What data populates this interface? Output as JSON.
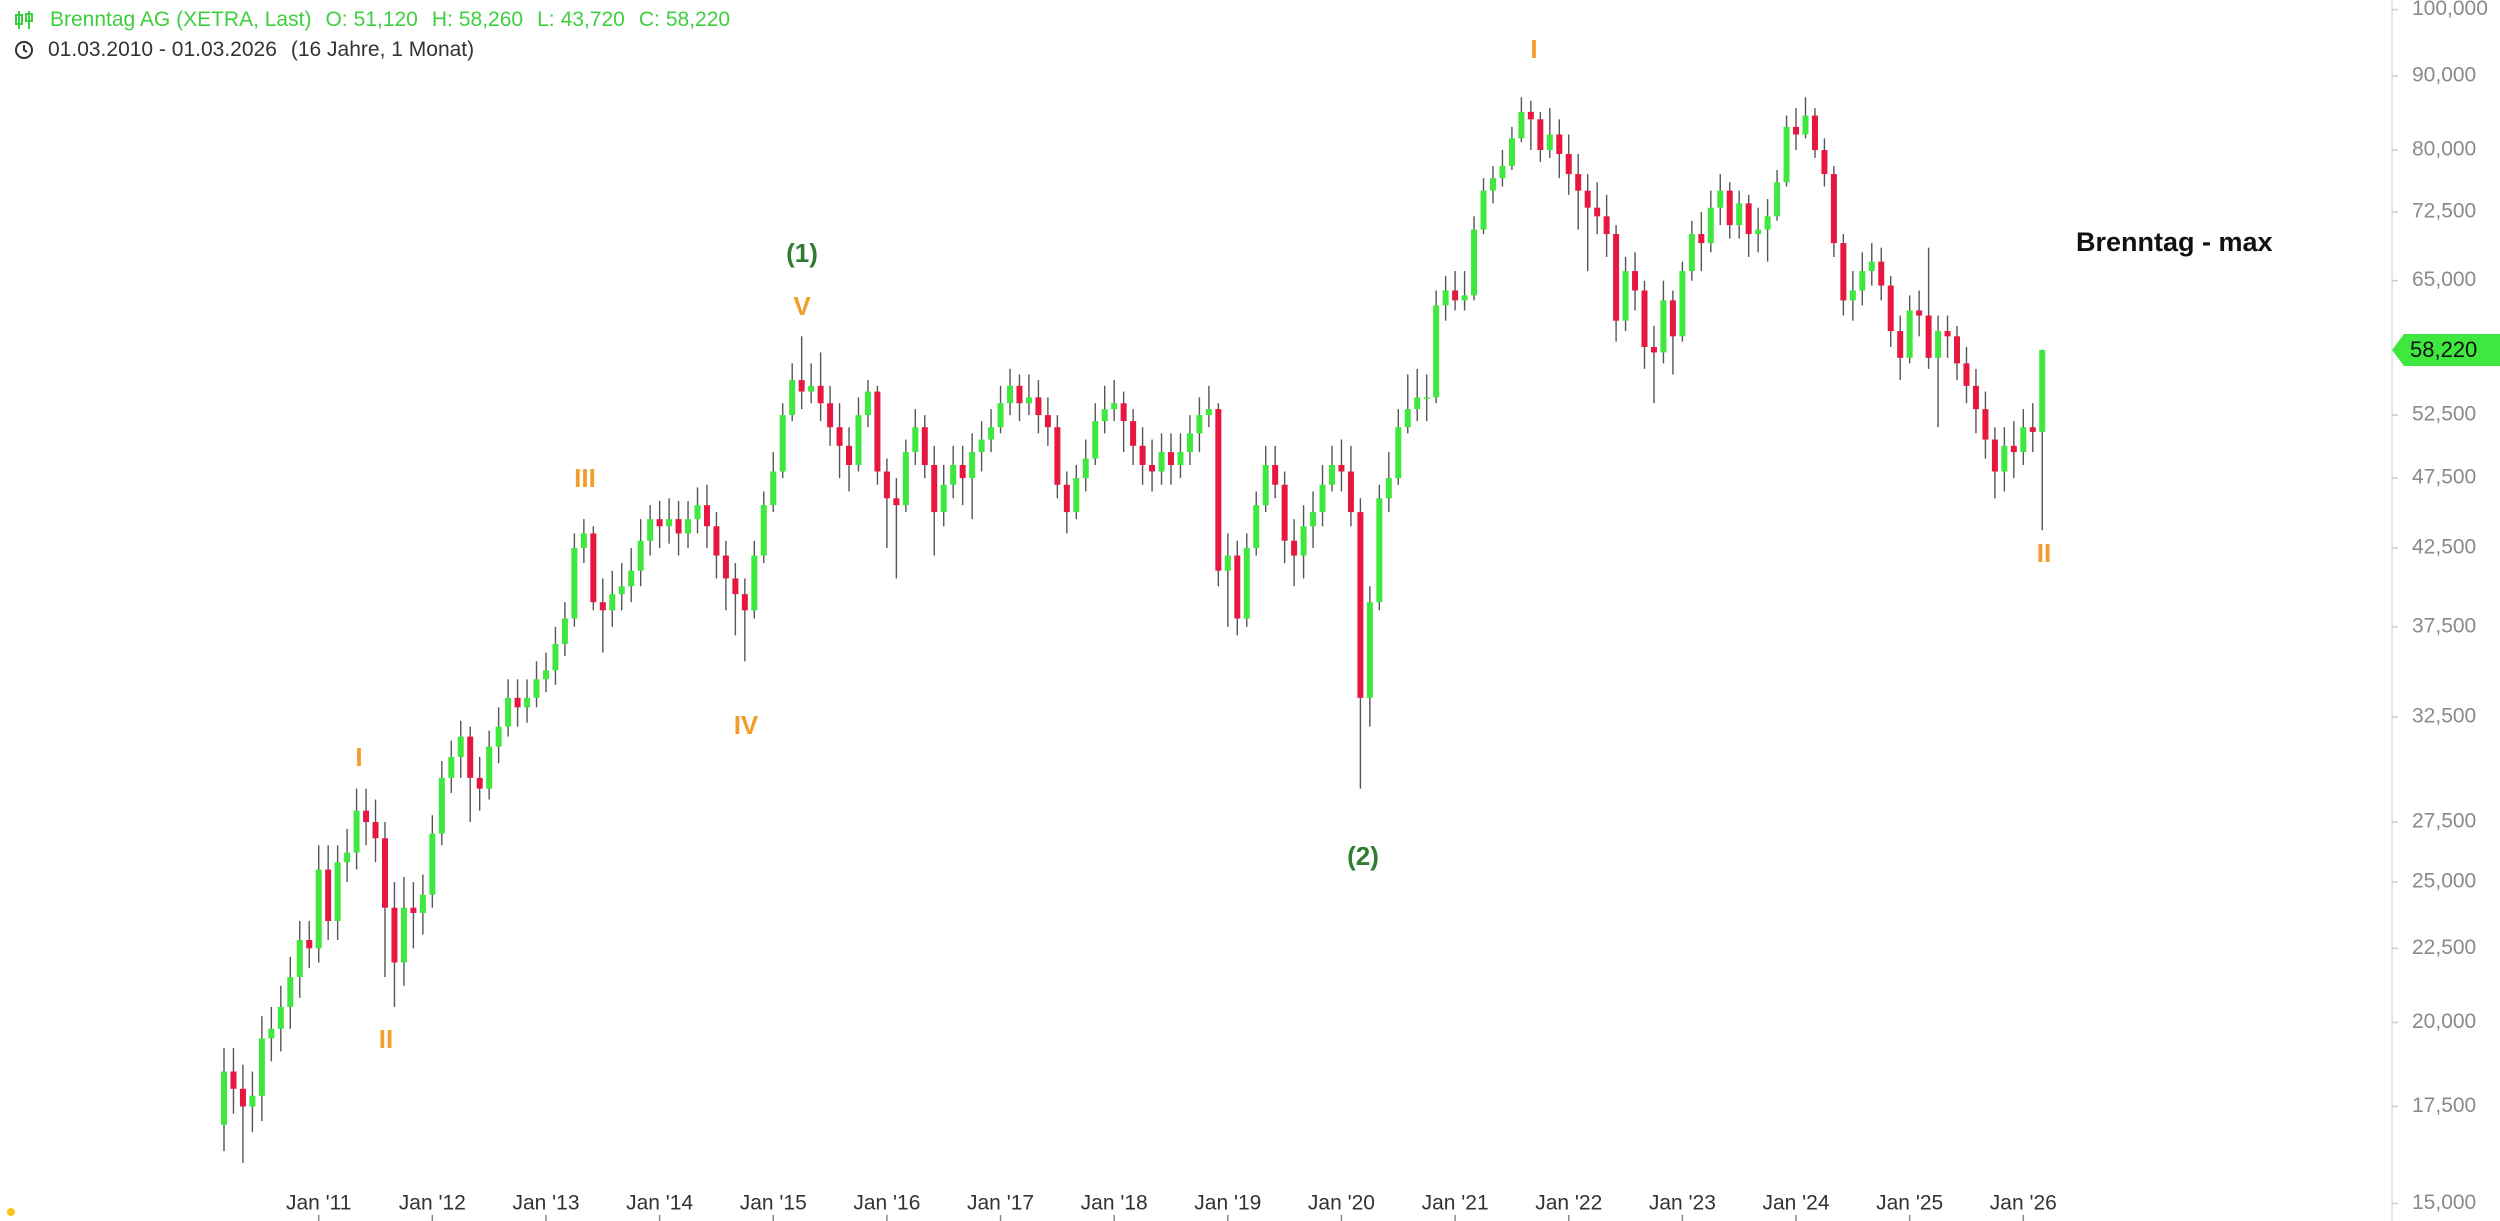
{
  "header": {
    "range": "01.03.2010 - 01.03.2026",
    "duration": "(16 Jahre, 1 Monat)"
  },
  "chart_data": {
    "type": "candlestick",
    "log_scale": true,
    "grid": false,
    "x": [
      "2010-03",
      "2010-04",
      "2010-05",
      "2010-06",
      "2010-07",
      "2010-08",
      "2010-09",
      "2010-10",
      "2010-11",
      "2010-12",
      "2011-01",
      "2011-02",
      "2011-03",
      "2011-04",
      "2011-05",
      "2011-06",
      "2011-07",
      "2011-08",
      "2011-09",
      "2011-10",
      "2011-11",
      "2011-12",
      "2012-01",
      "2012-02",
      "2012-03",
      "2012-04",
      "2012-05",
      "2012-06",
      "2012-07",
      "2012-08",
      "2012-09",
      "2012-10",
      "2012-11",
      "2012-12",
      "2013-01",
      "2013-02",
      "2013-03",
      "2013-04",
      "2013-05",
      "2013-06",
      "2013-07",
      "2013-08",
      "2013-09",
      "2013-10",
      "2013-11",
      "2013-12",
      "2014-01",
      "2014-02",
      "2014-03",
      "2014-04",
      "2014-05",
      "2014-06",
      "2014-07",
      "2014-08",
      "2014-09",
      "2014-10",
      "2014-11",
      "2014-12",
      "2015-01",
      "2015-02",
      "2015-03",
      "2015-04",
      "2015-05",
      "2015-06",
      "2015-07",
      "2015-08",
      "2015-09",
      "2015-10",
      "2015-11",
      "2015-12",
      "2016-01",
      "2016-02",
      "2016-03",
      "2016-04",
      "2016-05",
      "2016-06",
      "2016-07",
      "2016-08",
      "2016-09",
      "2016-10",
      "2016-11",
      "2016-12",
      "2017-01",
      "2017-02",
      "2017-03",
      "2017-04",
      "2017-05",
      "2017-06",
      "2017-07",
      "2017-08",
      "2017-09",
      "2017-10",
      "2017-11",
      "2017-12",
      "2018-01",
      "2018-02",
      "2018-03",
      "2018-04",
      "2018-05",
      "2018-06",
      "2018-07",
      "2018-08",
      "2018-09",
      "2018-10",
      "2018-11",
      "2018-12",
      "2019-01",
      "2019-02",
      "2019-03",
      "2019-04",
      "2019-05",
      "2019-06",
      "2019-07",
      "2019-08",
      "2019-09",
      "2019-10",
      "2019-11",
      "2019-12",
      "2020-01",
      "2020-02",
      "2020-03",
      "2020-04",
      "2020-05",
      "2020-06",
      "2020-07",
      "2020-08",
      "2020-09",
      "2020-10",
      "2020-11",
      "2020-12",
      "2021-01",
      "2021-02",
      "2021-03",
      "2021-04",
      "2021-05",
      "2021-06",
      "2021-07",
      "2021-08",
      "2021-09",
      "2021-10",
      "2021-11",
      "2021-12",
      "2022-01",
      "2022-02",
      "2022-03",
      "2022-04",
      "2022-05",
      "2022-06",
      "2022-07",
      "2022-08",
      "2022-09",
      "2022-10",
      "2022-11",
      "2022-12",
      "2023-01",
      "2023-02",
      "2023-03",
      "2023-04",
      "2023-05",
      "2023-06",
      "2023-07",
      "2023-08",
      "2023-09",
      "2023-10",
      "2023-11",
      "2023-12",
      "2024-01",
      "2024-02",
      "2024-03",
      "2024-04",
      "2024-05",
      "2024-06",
      "2024-07",
      "2024-08",
      "2024-09",
      "2024-10",
      "2024-11",
      "2024-12",
      "2025-01",
      "2025-02",
      "2025-03",
      "2025-04",
      "2025-05",
      "2025-06",
      "2025-07",
      "2025-08",
      "2025-09",
      "2025-10",
      "2025-11",
      "2025-12",
      "2026-01",
      "2026-02",
      "2026-03"
    ],
    "series": [
      {
        "name": "Brenntag AG (XETRA, Last)",
        "up_color": "#3ee83e",
        "down_color": "#e8173f",
        "wick_color": "#555555",
        "header_color": "#3ecf3e",
        "last_labels": [
          {
            "key": "O:",
            "text": "51,120"
          },
          {
            "key": "H:",
            "text": "58,260"
          },
          {
            "key": "L:",
            "text": "43,720"
          },
          {
            "key": "C:",
            "text": "58,220"
          }
        ],
        "open": [
          17.0,
          18.5,
          18.0,
          17.5,
          17.8,
          19.5,
          19.8,
          20.5,
          21.5,
          22.8,
          22.5,
          25.5,
          23.5,
          25.8,
          26.2,
          28.0,
          27.5,
          26.8,
          24.0,
          22.0,
          24.0,
          23.8,
          24.5,
          27.0,
          29.5,
          30.5,
          31.5,
          29.5,
          29.0,
          31.0,
          32.0,
          33.5,
          33.0,
          33.5,
          34.5,
          35.0,
          36.5,
          38.0,
          42.5,
          43.5,
          39.0,
          38.5,
          39.5,
          40.0,
          41.0,
          43.0,
          44.5,
          44.0,
          44.5,
          43.5,
          44.5,
          45.5,
          44.0,
          42.0,
          40.5,
          39.5,
          38.5,
          42.0,
          45.5,
          48.0,
          52.5,
          55.5,
          54.5,
          55.0,
          53.5,
          51.5,
          50.0,
          48.5,
          52.5,
          54.5,
          48.0,
          46.0,
          45.5,
          49.5,
          51.5,
          48.5,
          45.0,
          47.0,
          48.5,
          47.5,
          49.5,
          50.5,
          51.5,
          53.5,
          55.0,
          53.5,
          54.0,
          52.5,
          51.5,
          47.0,
          45.0,
          47.5,
          49.0,
          52.0,
          53.0,
          53.5,
          52.0,
          50.0,
          48.5,
          48.0,
          49.5,
          48.5,
          49.5,
          51.0,
          52.5,
          53.0,
          41.0,
          42.0,
          38.0,
          42.5,
          45.5,
          48.5,
          47.0,
          43.0,
          42.0,
          44.0,
          45.0,
          47.0,
          48.5,
          48.0,
          45.0,
          33.5,
          39.0,
          46.0,
          47.5,
          51.5,
          53.0,
          54.0,
          54.0,
          62.5,
          64.0,
          63.0,
          63.5,
          70.5,
          75.0,
          76.5,
          78.0,
          81.5,
          85.0,
          84.0,
          80.0,
          82.0,
          79.5,
          77.0,
          75.0,
          73.0,
          72.0,
          70.0,
          61.0,
          66.0,
          64.0,
          58.5,
          58.0,
          63.0,
          59.5,
          66.0,
          70.0,
          69.0,
          73.0,
          75.0,
          71.0,
          73.5,
          70.0,
          70.5,
          72.0,
          76.0,
          83.0,
          82.0,
          84.5,
          80.0,
          77.0,
          69.0,
          63.0,
          64.0,
          66.0,
          67.0,
          64.5,
          60.0,
          57.5,
          62.0,
          61.5,
          57.5,
          60.0,
          59.5,
          57.0,
          55.0,
          53.0,
          50.5,
          48.0,
          50.0,
          49.5,
          51.5,
          51.12
        ],
        "high": [
          19.2,
          19.2,
          18.7,
          18.5,
          20.2,
          20.5,
          21.2,
          22.2,
          23.5,
          23.5,
          26.5,
          26.5,
          26.5,
          27.2,
          29.0,
          29.0,
          28.5,
          27.5,
          25.0,
          25.2,
          25.0,
          25.3,
          27.8,
          30.3,
          31.3,
          32.3,
          32.0,
          30.5,
          31.8,
          33.0,
          34.5,
          34.5,
          34.5,
          35.5,
          36.0,
          37.5,
          39.0,
          43.5,
          44.5,
          44.0,
          40.5,
          41.0,
          41.5,
          42.5,
          44.5,
          45.5,
          45.8,
          46.0,
          45.8,
          45.8,
          46.8,
          47.0,
          45.0,
          43.0,
          41.5,
          40.5,
          43.0,
          46.5,
          49.5,
          53.5,
          57.0,
          59.5,
          57.0,
          58.0,
          55.0,
          53.5,
          51.5,
          54.0,
          55.5,
          55.0,
          49.0,
          47.5,
          50.5,
          53.0,
          52.5,
          50.0,
          48.5,
          50.0,
          50.0,
          51.0,
          52.0,
          53.0,
          55.0,
          56.5,
          56.0,
          56.0,
          55.5,
          54.0,
          52.5,
          48.0,
          48.5,
          50.5,
          53.5,
          55.0,
          55.5,
          54.5,
          53.0,
          51.5,
          50.5,
          51.0,
          51.0,
          51.0,
          52.5,
          54.0,
          55.0,
          53.5,
          43.5,
          43.0,
          43.5,
          46.5,
          50.0,
          50.0,
          48.0,
          44.5,
          45.5,
          46.5,
          48.5,
          50.0,
          50.5,
          50.0,
          46.0,
          40.0,
          47.0,
          49.5,
          53.0,
          56.0,
          56.5,
          56.0,
          64.0,
          65.5,
          66.0,
          66.0,
          72.0,
          76.5,
          78.0,
          80.0,
          83.0,
          87.0,
          86.5,
          85.0,
          85.5,
          84.0,
          82.0,
          79.5,
          77.0,
          76.0,
          74.5,
          71.0,
          67.5,
          68.0,
          65.0,
          60.5,
          65.0,
          64.0,
          67.0,
          71.5,
          72.5,
          75.0,
          77.0,
          76.0,
          75.0,
          74.5,
          73.0,
          74.0,
          77.5,
          84.5,
          85.5,
          87.0,
          85.5,
          81.5,
          78.0,
          70.0,
          66.0,
          68.0,
          69.0,
          68.5,
          65.5,
          61.5,
          63.5,
          64.0,
          68.5,
          61.5,
          61.5,
          60.5,
          58.5,
          56.5,
          54.5,
          51.5,
          51.5,
          52.0,
          53.0,
          53.5,
          58.26
        ],
        "low": [
          16.3,
          17.3,
          16.0,
          16.8,
          17.1,
          18.8,
          19.1,
          19.8,
          20.8,
          21.8,
          22.0,
          22.8,
          22.8,
          25.0,
          25.5,
          26.5,
          25.8,
          21.5,
          20.5,
          21.2,
          22.5,
          23.0,
          24.0,
          26.5,
          28.8,
          29.5,
          27.5,
          28.0,
          28.5,
          30.2,
          31.5,
          32.0,
          32.2,
          33.0,
          33.8,
          34.2,
          35.8,
          37.5,
          41.5,
          38.5,
          36.0,
          37.5,
          38.5,
          39.0,
          40.0,
          42.0,
          42.5,
          42.8,
          42.0,
          42.5,
          43.5,
          42.5,
          40.5,
          38.5,
          37.0,
          35.5,
          38.0,
          41.5,
          45.0,
          47.5,
          52.0,
          53.0,
          53.5,
          52.0,
          50.0,
          47.5,
          46.5,
          48.0,
          51.5,
          47.0,
          42.5,
          40.5,
          45.0,
          48.5,
          47.5,
          42.0,
          44.0,
          46.0,
          45.5,
          44.5,
          48.0,
          49.5,
          51.0,
          52.5,
          52.0,
          52.5,
          51.0,
          50.0,
          46.0,
          43.5,
          44.5,
          46.5,
          48.5,
          51.0,
          52.0,
          49.5,
          48.5,
          47.0,
          46.5,
          47.0,
          47.0,
          47.5,
          48.5,
          49.5,
          51.5,
          40.0,
          37.5,
          37.0,
          37.5,
          42.0,
          45.0,
          46.0,
          41.5,
          40.0,
          40.5,
          42.5,
          44.0,
          46.5,
          46.5,
          44.0,
          29.0,
          32.0,
          38.5,
          45.0,
          47.0,
          51.0,
          52.0,
          52.0,
          53.5,
          61.0,
          62.0,
          62.0,
          63.0,
          70.0,
          73.5,
          75.5,
          77.5,
          81.0,
          80.0,
          78.5,
          79.0,
          76.5,
          74.5,
          70.5,
          66.0,
          70.0,
          67.5,
          59.0,
          60.0,
          62.0,
          56.5,
          53.5,
          57.0,
          56.0,
          59.0,
          65.0,
          66.0,
          68.0,
          71.0,
          69.5,
          69.5,
          67.5,
          68.0,
          67.0,
          71.5,
          75.5,
          80.0,
          81.5,
          79.0,
          75.5,
          67.5,
          61.5,
          61.0,
          62.5,
          64.5,
          63.0,
          58.5,
          55.5,
          57.0,
          59.5,
          56.5,
          51.5,
          57.5,
          55.5,
          53.5,
          51.0,
          49.0,
          46.0,
          46.5,
          47.5,
          48.5,
          49.5,
          43.72
        ],
        "close": [
          18.5,
          18.0,
          17.5,
          17.8,
          19.5,
          19.8,
          20.5,
          21.5,
          22.8,
          22.5,
          25.5,
          23.5,
          25.8,
          26.2,
          28.0,
          27.5,
          26.8,
          24.0,
          22.0,
          24.0,
          23.8,
          24.5,
          27.0,
          29.5,
          30.5,
          31.5,
          29.5,
          29.0,
          31.0,
          32.0,
          33.5,
          33.0,
          33.5,
          34.5,
          35.0,
          36.5,
          38.0,
          42.5,
          43.5,
          39.0,
          38.5,
          39.5,
          40.0,
          41.0,
          43.0,
          44.5,
          44.0,
          44.5,
          43.5,
          44.5,
          45.5,
          44.0,
          42.0,
          40.5,
          39.5,
          38.5,
          42.0,
          45.5,
          48.0,
          52.5,
          55.5,
          54.5,
          55.0,
          53.5,
          51.5,
          50.0,
          48.5,
          52.5,
          54.5,
          48.0,
          46.0,
          45.5,
          49.5,
          51.5,
          48.5,
          45.0,
          47.0,
          48.5,
          47.5,
          49.5,
          50.5,
          51.5,
          53.5,
          55.0,
          53.5,
          54.0,
          52.5,
          51.5,
          47.0,
          45.0,
          47.5,
          49.0,
          52.0,
          53.0,
          53.5,
          52.0,
          50.0,
          48.5,
          48.0,
          49.5,
          48.5,
          49.5,
          51.0,
          52.5,
          53.0,
          41.0,
          42.0,
          38.0,
          42.5,
          45.5,
          48.5,
          47.0,
          43.0,
          42.0,
          44.0,
          45.0,
          47.0,
          48.5,
          48.0,
          45.0,
          33.5,
          39.0,
          46.0,
          47.5,
          51.5,
          53.0,
          54.0,
          54.0,
          62.5,
          64.0,
          63.0,
          63.5,
          70.5,
          75.0,
          76.5,
          78.0,
          81.5,
          85.0,
          84.0,
          80.0,
          82.0,
          79.5,
          77.0,
          75.0,
          73.0,
          72.0,
          70.0,
          61.0,
          66.0,
          64.0,
          58.5,
          58.0,
          63.0,
          59.5,
          66.0,
          70.0,
          69.0,
          73.0,
          75.0,
          71.0,
          73.5,
          70.0,
          70.5,
          72.0,
          76.0,
          83.0,
          82.0,
          84.5,
          80.0,
          77.0,
          69.0,
          63.0,
          64.0,
          66.0,
          67.0,
          64.5,
          60.0,
          57.5,
          62.0,
          61.5,
          57.5,
          60.0,
          59.5,
          57.0,
          55.0,
          53.0,
          50.5,
          48.0,
          50.0,
          49.5,
          51.5,
          51.12,
          58.22
        ]
      }
    ],
    "ylim": [
      15,
      100
    ],
    "yticks": [
      {
        "value": 15,
        "label": "15,000"
      },
      {
        "value": 17.5,
        "label": "17,500"
      },
      {
        "value": 20,
        "label": "20,000"
      },
      {
        "value": 22.5,
        "label": "22,500"
      },
      {
        "value": 25,
        "label": "25,000"
      },
      {
        "value": 27.5,
        "label": "27,500"
      },
      {
        "value": 32.5,
        "label": "32,500"
      },
      {
        "value": 37.5,
        "label": "37,500"
      },
      {
        "value": 42.5,
        "label": "42,500"
      },
      {
        "value": 47.5,
        "label": "47,500"
      },
      {
        "value": 52.5,
        "label": "52,500"
      },
      {
        "value": 65,
        "label": "65,000"
      },
      {
        "value": 72.5,
        "label": "72,500"
      },
      {
        "value": 80,
        "label": "80,000"
      },
      {
        "value": 90,
        "label": "90,000"
      },
      {
        "value": 100,
        "label": "100,000"
      }
    ],
    "xticks": [
      {
        "value": "2011-01",
        "label": "Jan '11"
      },
      {
        "value": "2012-01",
        "label": "Jan '12"
      },
      {
        "value": "2013-01",
        "label": "Jan '13"
      },
      {
        "value": "2014-01",
        "label": "Jan '14"
      },
      {
        "value": "2015-01",
        "label": "Jan '15"
      },
      {
        "value": "2016-01",
        "label": "Jan '16"
      },
      {
        "value": "2017-01",
        "label": "Jan '17"
      },
      {
        "value": "2018-01",
        "label": "Jan '18"
      },
      {
        "value": "2019-01",
        "label": "Jan '19"
      },
      {
        "value": "2020-01",
        "label": "Jan '20"
      },
      {
        "value": "2021-01",
        "label": "Jan '21"
      },
      {
        "value": "2022-01",
        "label": "Jan '22"
      },
      {
        "value": "2023-01",
        "label": "Jan '23"
      },
      {
        "value": "2024-01",
        "label": "Jan '24"
      },
      {
        "value": "2025-01",
        "label": "Jan '25"
      },
      {
        "value": "2026-01",
        "label": "Jan '26"
      }
    ],
    "annotations": [
      {
        "text": "I",
        "color": "#f39c2a"
      },
      {
        "text": "II",
        "color": "#f39c2a"
      },
      {
        "text": "III",
        "color": "#f39c2a"
      },
      {
        "text": "IV",
        "color": "#f39c2a"
      },
      {
        "text": "V",
        "color": "#f39c2a"
      },
      {
        "text": "(1)",
        "color": "#2e7d32"
      },
      {
        "text": "(2)",
        "color": "#2e7d32"
      },
      {
        "text": "I",
        "color": "#f39c2a"
      },
      {
        "text": "II",
        "color": "#f39c2a"
      },
      {
        "text": "Brenntag - max",
        "color": "#111111"
      }
    ]
  }
}
